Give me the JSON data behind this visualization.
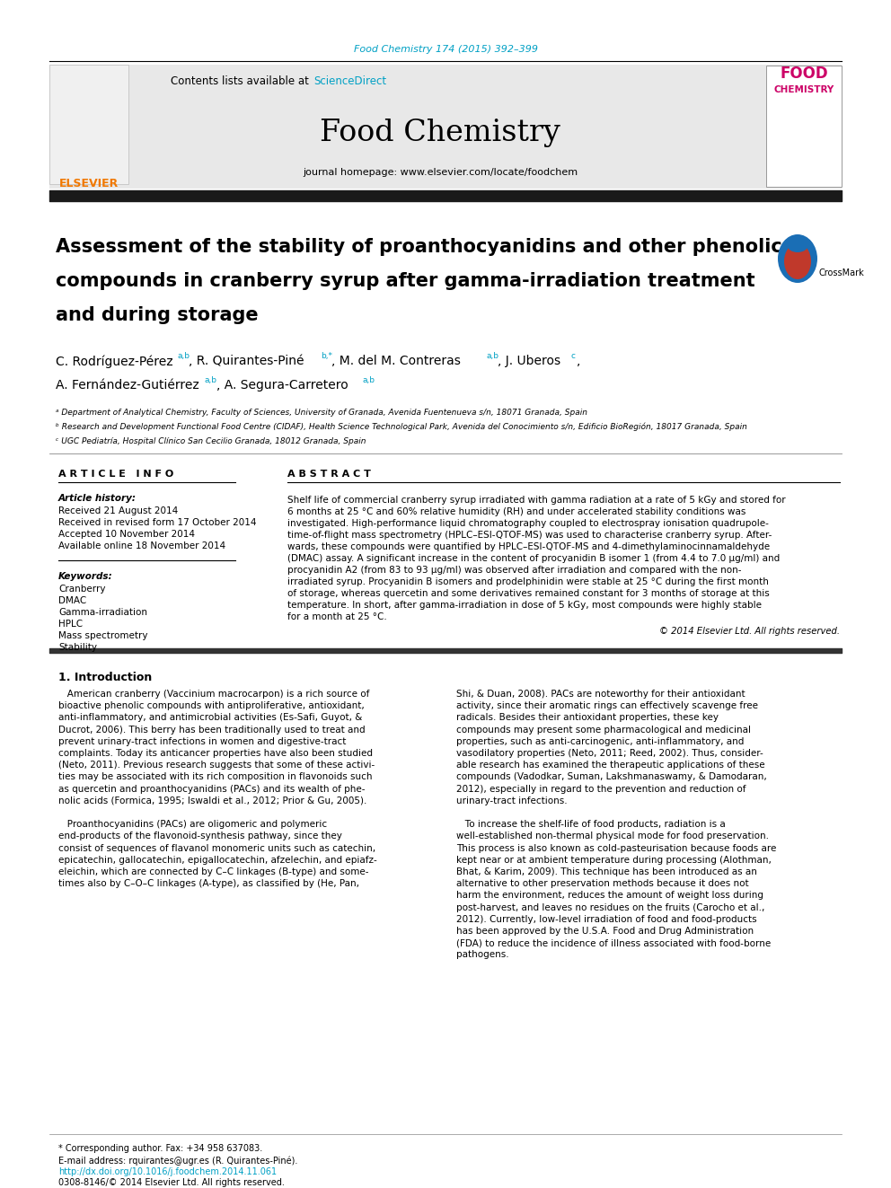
{
  "page_bg": "#ffffff",
  "header_journal_ref": "Food Chemistry 174 (2015) 392–399",
  "header_journal_ref_color": "#00a0c4",
  "header_bg": "#e8e8e8",
  "header_journal_name": "Food Chemistry",
  "header_contents_text": "Contents lists available at ",
  "header_sciencedirect": "ScienceDirect",
  "header_sciencedirect_color": "#00a0c4",
  "header_homepage": "journal homepage: www.elsevier.com/locate/foodchem",
  "elsevier_color": "#f07800",
  "thick_bar_color": "#1a1a1a",
  "title_text": "Assessment of the stability of proanthocyanidins and other phenolic\ncompounds in cranberry syrup after gamma-irradiation treatment\nand during storage",
  "affil_a": "ᵃ Department of Analytical Chemistry, Faculty of Sciences, University of Granada, Avenida Fuentenueva s/n, 18071 Granada, Spain",
  "affil_b": "ᵇ Research and Development Functional Food Centre (CIDAF), Health Science Technological Park, Avenida del Conocimiento s/n, Edificio BioRegión, 18017 Granada, Spain",
  "affil_c": "ᶜ UGC Pediatría, Hospital Clínico San Cecilio Granada, 18012 Granada, Spain",
  "article_info_header": "A R T I C L E   I N F O",
  "abstract_header": "A B S T R A C T",
  "article_history_label": "Article history:",
  "received1": "Received 21 August 2014",
  "received2": "Received in revised form 17 October 2014",
  "accepted": "Accepted 10 November 2014",
  "available": "Available online 18 November 2014",
  "keywords_label": "Keywords:",
  "keywords": [
    "Cranberry",
    "DMAC",
    "Gamma-irradiation",
    "HPLC",
    "Mass spectrometry",
    "Stability"
  ],
  "abstract_text": "Shelf life of commercial cranberry syrup irradiated with gamma radiation at a rate of 5 kGy and stored for\n6 months at 25 °C and 60% relative humidity (RH) and under accelerated stability conditions was\ninvestigated. High-performance liquid chromatography coupled to electrospray ionisation quadrupole-\ntime-of-flight mass spectrometry (HPLC–ESI-QTOF-MS) was used to characterise cranberry syrup. After-\nwards, these compounds were quantified by HPLC–ESI-QTOF-MS and 4-dimethylaminocinnamaldehyde\n(DMAC) assay. A significant increase in the content of procyanidin B isomer 1 (from 4.4 to 7.0 μg/ml) and\nprocyanidin A2 (from 83 to 93 μg/ml) was observed after irradiation and compared with the non-\nirradiated syrup. Procyanidin B isomers and prodelphinidin were stable at 25 °C during the first month\nof storage, whereas quercetin and some derivatives remained constant for 3 months of storage at this\ntemperature. In short, after gamma-irradiation in dose of 5 kGy, most compounds were highly stable\nfor a month at 25 °C.",
  "copyright_text": "© 2014 Elsevier Ltd. All rights reserved.",
  "section1_header": "1. Introduction",
  "footnote_star": "* Corresponding author. Fax: +34 958 637083.",
  "footnote_email": "E-mail address: rquirantes@ugr.es (R. Quirantes-Piné).",
  "footnote_doi": "http://dx.doi.org/10.1016/j.foodchem.2014.11.061",
  "footnote_issn": "0308-8146/© 2014 Elsevier Ltd. All rights reserved.",
  "link_color": "#00a0c4",
  "intro_col1_text": "   American cranberry (Vaccinium macrocarpon) is a rich source of\nbioactive phenolic compounds with antiproliferative, antioxidant,\nanti-inflammatory, and antimicrobial activities (Es-Safi, Guyot, &\nDucrot, 2006). This berry has been traditionally used to treat and\nprevent urinary-tract infections in women and digestive-tract\ncomplaints. Today its anticancer properties have also been studied\n(Neto, 2011). Previous research suggests that some of these activi-\nties may be associated with its rich composition in flavonoids such\nas quercetin and proanthocyanidins (PACs) and its wealth of phe-\nnolic acids (Formica, 1995; Iswaldi et al., 2012; Prior & Gu, 2005).\n\n   Proanthocyanidins (PACs) are oligomeric and polymeric\nend-products of the flavonoid-synthesis pathway, since they\nconsist of sequences of flavanol monomeric units such as catechin,\nepicatechin, gallocatechin, epigallocatechin, afzelechin, and epiafz-\neleichin, which are connected by C–C linkages (B-type) and some-\ntimes also by C–O–C linkages (A-type), as classified by (He, Pan,",
  "intro_col2_text": "Shi, & Duan, 2008). PACs are noteworthy for their antioxidant\nactivity, since their aromatic rings can effectively scavenge free\nradicals. Besides their antioxidant properties, these key\ncompounds may present some pharmacological and medicinal\nproperties, such as anti-carcinogenic, anti-inflammatory, and\nvasodilatory properties (Neto, 2011; Reed, 2002). Thus, consider-\nable research has examined the therapeutic applications of these\ncompounds (Vadodkar, Suman, Lakshmanaswamy, & Damodaran,\n2012), especially in regard to the prevention and reduction of\nurinary-tract infections.\n\n   To increase the shelf-life of food products, radiation is a\nwell-established non-thermal physical mode for food preservation.\nThis process is also known as cold-pasteurisation because foods are\nkept near or at ambient temperature during processing (Alothman,\nBhat, & Karim, 2009). This technique has been introduced as an\nalternative to other preservation methods because it does not\nharm the environment, reduces the amount of weight loss during\npost-harvest, and leaves no residues on the fruits (Carocho et al.,\n2012). Currently, low-level irradiation of food and food-products\nhas been approved by the U.S.A. Food and Drug Administration\n(FDA) to reduce the incidence of illness associated with food-borne\npathogens."
}
